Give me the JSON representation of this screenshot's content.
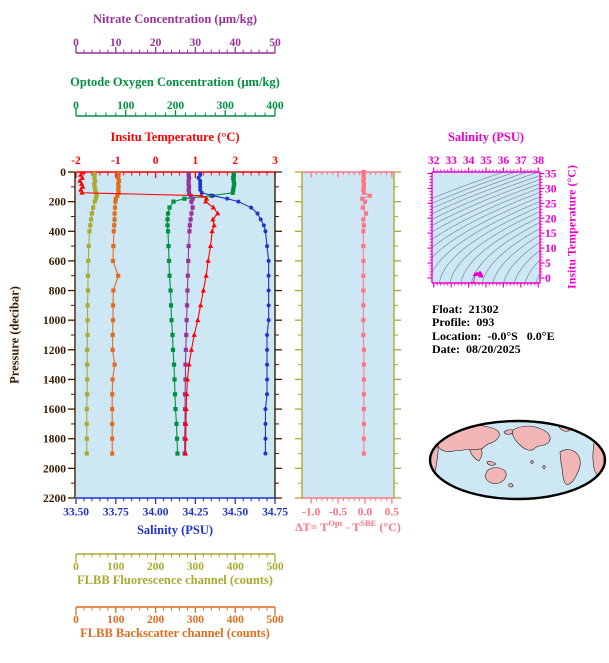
{
  "float_info": {
    "lines": [
      "Float:  21302",
      "Profile:  093",
      "Location:  -0.0°S   0.0°E",
      "Date:  08/20/2025"
    ]
  },
  "colors": {
    "panel_background": "#cde8f4",
    "pressure_axis": "#3a1d00",
    "nitrate": "#993399",
    "oxygen": "#009140",
    "temperature": "#ff0000",
    "salinity": "#2233cc",
    "fluorescence": "#aaaa33",
    "backscatter": "#e06d1f",
    "delta_t": "#ff7585",
    "ts_magenta": "#ee00cc",
    "contour_gray": "#7a8a99",
    "map_ocean": "#cde8f4",
    "map_land": "#f2b6b6",
    "map_outline": "#000000",
    "text_black": "#000000"
  },
  "chart_data": [
    {
      "id": "depth-profiles",
      "type": "line",
      "y_axis": {
        "label": "Pressure (decibar)",
        "min": 0,
        "max": 2200,
        "tick_values": [
          0,
          200,
          400,
          600,
          800,
          1000,
          1200,
          1400,
          1600,
          1800,
          2000,
          2200
        ],
        "tick_labels": [
          "0",
          "200",
          "400",
          "600",
          "800",
          "1000",
          "1200",
          "1400",
          "1600",
          "1800",
          "2000",
          "2200"
        ]
      },
      "x_axes": [
        {
          "id": "nitrate",
          "label": "Nitrate Concentration (µm/kg)",
          "min": 0,
          "max": 50,
          "tick_values": [
            0,
            10,
            20,
            30,
            40,
            50
          ],
          "tick_labels": [
            "0",
            "10",
            "20",
            "30",
            "40",
            "50"
          ]
        },
        {
          "id": "oxygen",
          "label": "Optode Oxygen Concentration (µm/kg)",
          "min": 0,
          "max": 400,
          "tick_values": [
            0,
            100,
            200,
            300,
            400
          ],
          "tick_labels": [
            "0",
            "100",
            "200",
            "300",
            "400"
          ]
        },
        {
          "id": "temperature",
          "label": "Insitu Temperature (°C)",
          "min": -2,
          "max": 3,
          "tick_values": [
            -2,
            -1,
            0,
            1,
            2,
            3
          ],
          "tick_labels": [
            "-2",
            "-1",
            "0",
            "1",
            "2",
            "3"
          ]
        },
        {
          "id": "salinity",
          "label": "Salinity (PSU)",
          "min": 33.5,
          "max": 34.75,
          "tick_values": [
            33.5,
            33.75,
            34.0,
            34.25,
            34.5,
            34.75
          ],
          "tick_labels": [
            "33.50",
            "33.75",
            "34.00",
            "34.25",
            "34.50",
            "34.75"
          ]
        },
        {
          "id": "fluorescence",
          "label": "FLBB Fluorescence channel (counts)",
          "min": 0,
          "max": 500,
          "tick_values": [
            0,
            100,
            200,
            300,
            400,
            500
          ],
          "tick_labels": [
            "0",
            "100",
            "200",
            "300",
            "400",
            "500"
          ]
        },
        {
          "id": "backscatter",
          "label": "FLBB Backscatter channel (counts)",
          "min": 0,
          "max": 500,
          "tick_values": [
            0,
            100,
            200,
            300,
            400,
            500
          ],
          "tick_labels": [
            "0",
            "100",
            "200",
            "300",
            "400",
            "500"
          ]
        }
      ],
      "pressure": [
        0,
        20,
        40,
        60,
        80,
        100,
        120,
        140,
        160,
        180,
        200,
        240,
        280,
        320,
        360,
        400,
        500,
        600,
        700,
        800,
        900,
        1000,
        1100,
        1200,
        1300,
        1400,
        1500,
        1600,
        1700,
        1800,
        1900
      ],
      "series": [
        {
          "axis": "fluorescence",
          "marker": "square",
          "values": [
            46,
            47,
            46,
            48,
            46,
            47,
            48,
            50,
            52,
            50,
            47,
            43,
            40,
            38,
            36,
            34,
            32,
            31,
            30,
            30,
            29,
            29,
            29,
            28,
            28,
            28,
            28,
            27,
            27,
            27,
            27
          ]
        },
        {
          "axis": "backscatter",
          "marker": "square",
          "values": [
            106,
            107,
            106,
            108,
            106,
            107,
            106,
            107,
            104,
            100,
            99,
            98,
            97,
            97,
            96,
            95,
            94,
            93,
            106,
            94,
            93,
            93,
            92,
            92,
            97,
            92,
            91,
            91,
            91,
            91,
            91
          ]
        },
        {
          "axis": "oxygen",
          "marker": "square",
          "values": [
            317,
            317,
            316,
            317,
            318,
            317,
            316,
            315,
            272,
            218,
            196,
            188,
            185,
            184,
            184,
            185,
            186,
            187,
            188,
            190,
            191,
            192,
            194,
            195,
            197,
            198,
            199,
            200,
            202,
            203,
            204
          ]
        },
        {
          "axis": "nitrate",
          "marker": "square",
          "values": [
            28.3,
            28.3,
            28.4,
            28.3,
            28.3,
            28.4,
            28.3,
            28.4,
            28.8,
            29.3,
            29.0,
            29.3,
            29.0,
            28.8,
            28.6,
            28.5,
            28.3,
            28.2,
            28.1,
            28.0,
            27.9,
            27.8,
            27.7,
            27.6,
            27.5,
            27.5,
            27.4,
            27.4,
            27.4,
            27.3,
            27.3
          ]
        },
        {
          "axis": "temperature",
          "marker": "triangle",
          "values": [
            -1.82,
            -1.88,
            -1.84,
            -1.9,
            -1.86,
            -1.83,
            -1.88,
            -1.85,
            1.15,
            1.28,
            1.26,
            1.45,
            1.56,
            1.44,
            1.47,
            1.42,
            1.38,
            1.32,
            1.27,
            1.2,
            1.13,
            1.06,
            0.97,
            0.9,
            0.84,
            0.8,
            0.78,
            0.77,
            0.76,
            0.76,
            0.75
          ]
        },
        {
          "axis": "salinity",
          "marker": "circle",
          "values": [
            34.28,
            34.28,
            34.27,
            34.28,
            34.28,
            34.28,
            34.28,
            34.29,
            34.36,
            34.45,
            34.52,
            34.6,
            34.64,
            34.66,
            34.68,
            34.69,
            34.7,
            34.71,
            34.71,
            34.71,
            34.71,
            34.71,
            34.7,
            34.7,
            34.7,
            34.7,
            34.7,
            34.69,
            34.69,
            34.69,
            34.69
          ]
        }
      ]
    },
    {
      "id": "delta-t",
      "type": "line",
      "x_axis": {
        "title_parts": {
          "p1": "ΔT= T",
          "s1": "Opt",
          "p2": " - T",
          "s2": "SBE",
          "p3": " (°C)"
        },
        "min": -1.17,
        "max": 0.54,
        "tick_values": [
          -1.0,
          -0.5,
          0.0,
          0.5
        ],
        "tick_labels": [
          "-1.0",
          "-0.5",
          "0.0",
          "0.5"
        ]
      },
      "values": [
        -0.02,
        -0.03,
        -0.02,
        -0.03,
        -0.02,
        -0.02,
        -0.03,
        -0.02,
        0.09,
        -0.05,
        0.0,
        -0.04,
        0.02,
        -0.03,
        -0.02,
        -0.03,
        -0.03,
        -0.03,
        -0.03,
        -0.03,
        -0.03,
        -0.03,
        -0.03,
        -0.02,
        -0.02,
        -0.02,
        -0.02,
        -0.02,
        -0.02,
        -0.02,
        -0.02
      ]
    },
    {
      "id": "ts-diagram",
      "type": "scatter",
      "x_axis": {
        "label": "Salinity (PSU)",
        "min": 31.9,
        "max": 38.1,
        "tick_values": [
          32,
          33,
          34,
          35,
          36,
          37,
          38
        ],
        "tick_labels": [
          "32",
          "33",
          "34",
          "35",
          "36",
          "37",
          "38"
        ]
      },
      "y_axis": {
        "label": "Insitu Temperature (°C)",
        "min": -1.7,
        "max": 35.5,
        "tick_values": [
          0,
          5,
          10,
          15,
          20,
          25,
          30,
          35
        ],
        "tick_labels": [
          "0",
          "5",
          "10",
          "15",
          "20",
          "25",
          "30",
          "35"
        ]
      },
      "contour_levels": [
        20.5,
        21,
        21.5,
        22,
        22.5,
        23,
        23.5,
        24,
        24.5,
        25,
        25.5,
        26,
        26.5,
        27,
        27.5,
        28,
        28.5,
        29,
        29.5,
        30,
        30.5
      ]
    }
  ]
}
